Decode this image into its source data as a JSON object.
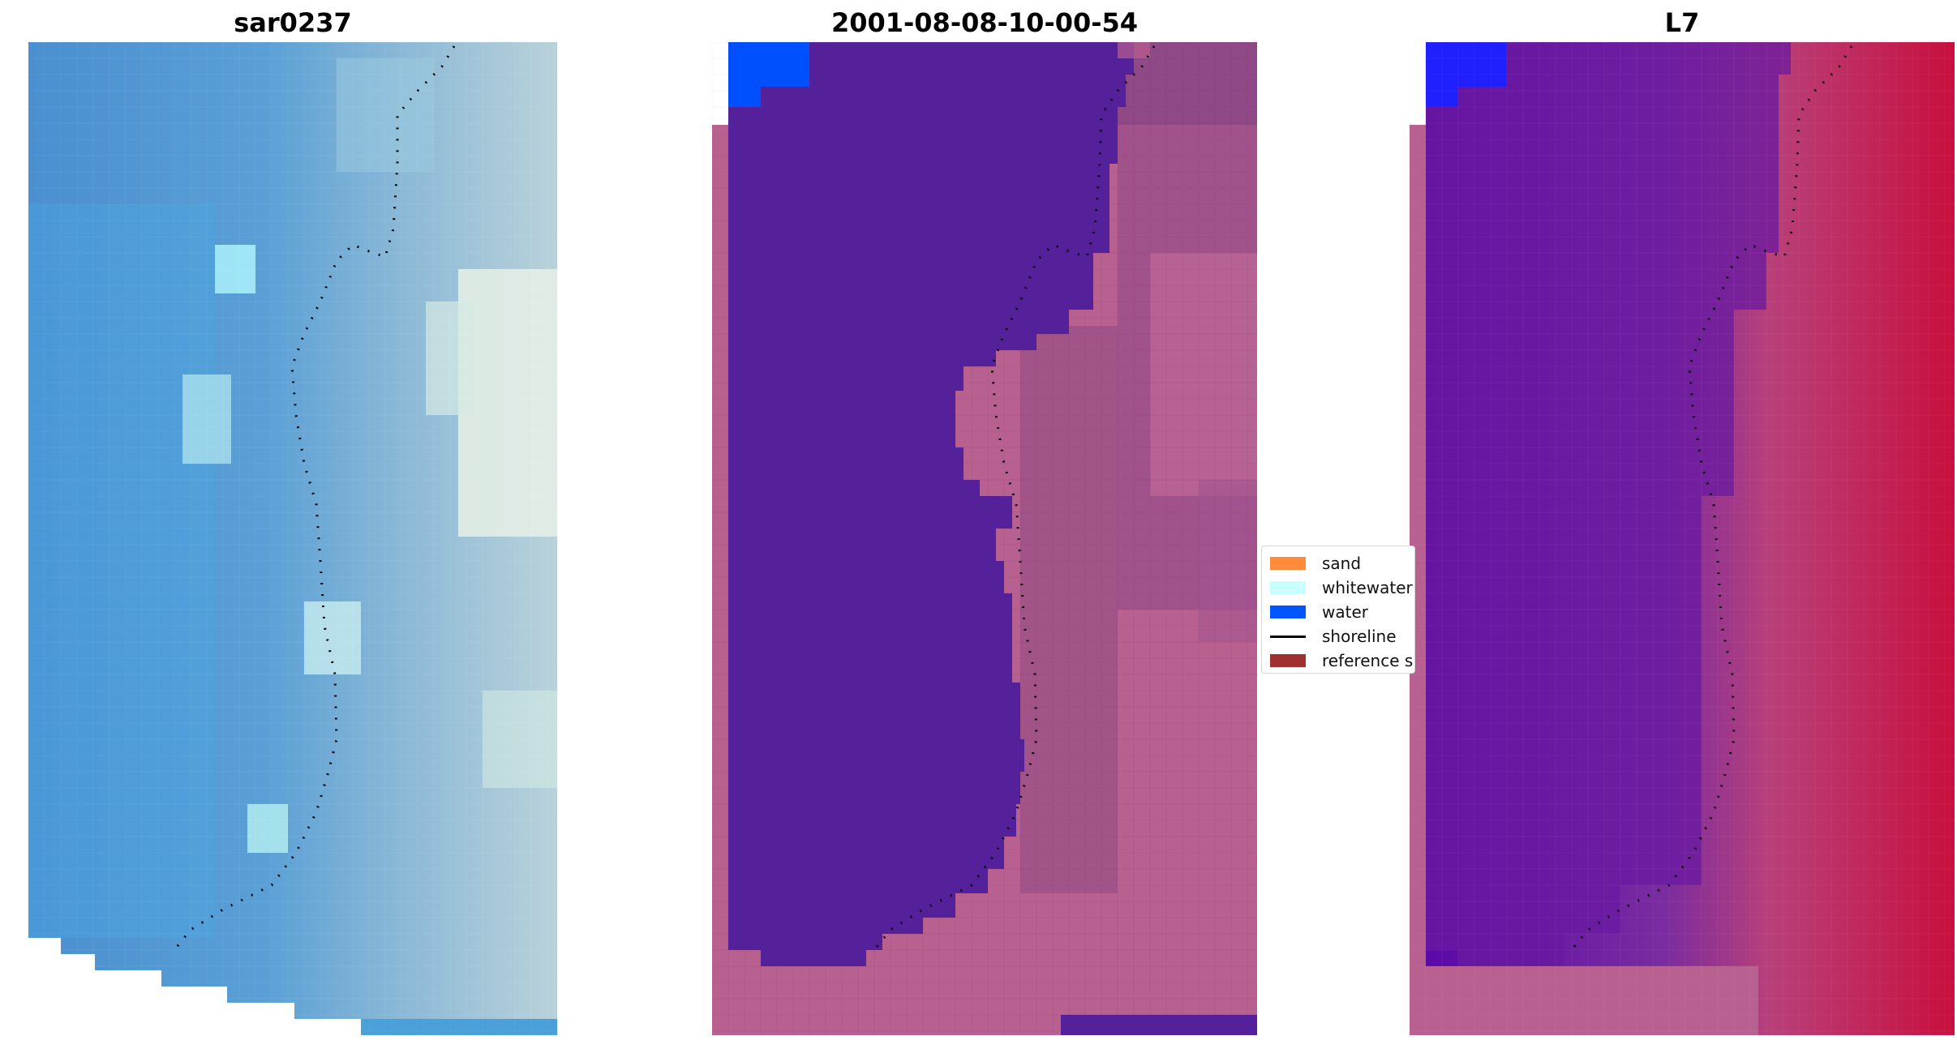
{
  "panels": [
    {
      "title": "sar0237",
      "image": "RGB satellite image with detected shoreline"
    },
    {
      "title": "2001-08-08-10-00-54",
      "image": "classified image with detected shoreline"
    },
    {
      "title": "L7",
      "image": "MNDWI index image with detected shoreline"
    }
  ],
  "legend": {
    "items": [
      {
        "label": "sand",
        "color": "#ff8a3a",
        "kind": "patch"
      },
      {
        "label": "whitewater",
        "color": "#c8ffff",
        "kind": "patch"
      },
      {
        "label": "water",
        "color": "#0055ff",
        "kind": "patch"
      },
      {
        "label": "shoreline",
        "color": "#000000",
        "kind": "line"
      },
      {
        "label": "reference shoreline",
        "color": "#a03030",
        "kind": "patch"
      }
    ]
  },
  "colors": {
    "water_class": "#55219a",
    "land_class": "#b86090",
    "deep_water_patch": "#0050ff",
    "index_water": "#6a1aa0",
    "index_land": "#c01040"
  }
}
